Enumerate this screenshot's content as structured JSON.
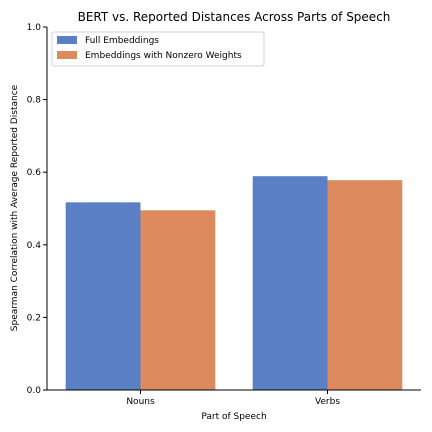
{
  "chart_data": {
    "type": "bar",
    "title": "BERT vs. Reported Distances Across Parts of Speech",
    "xlabel": "Part of Speech",
    "ylabel": "Spearman Correlation with Average Reported Distance",
    "categories": [
      "Nouns",
      "Verbs"
    ],
    "series": [
      {
        "name": "Full Embeddings",
        "values": [
          0.517,
          0.589
        ],
        "color": "#5b7fc4"
      },
      {
        "name": "Embeddings with Nonzero Weights",
        "values": [
          0.495,
          0.578
        ],
        "color": "#dd8a5f"
      }
    ],
    "ylim": [
      0,
      1.0
    ],
    "yticks": [
      "0.0",
      "0.2",
      "0.4",
      "0.6",
      "0.8",
      "1.0"
    ],
    "grid": false,
    "legend_position": "top-left"
  }
}
